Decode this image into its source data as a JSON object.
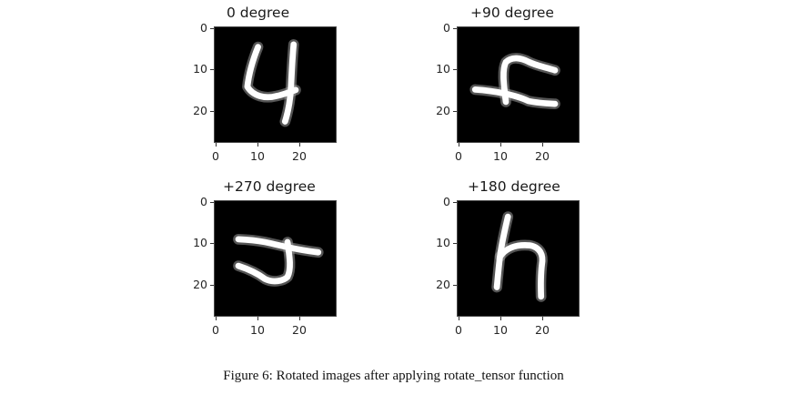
{
  "figure": {
    "caption": "Figure 6: Rotated images after applying rotate_tensor function",
    "panels": [
      {
        "title": "0 degree",
        "digit_icon": "digit-4-icon",
        "yticks": [
          "0",
          "10",
          "20"
        ],
        "xticks": [
          "0",
          "10",
          "20"
        ]
      },
      {
        "title": "+90 degree",
        "digit_icon": "digit-4-rotated-90-icon",
        "yticks": [
          "0",
          "10",
          "20"
        ],
        "xticks": [
          "0",
          "10",
          "20"
        ]
      },
      {
        "title": "+270 degree",
        "digit_icon": "digit-4-rotated-270-icon",
        "yticks": [
          "0",
          "10",
          "20"
        ],
        "xticks": [
          "0",
          "10",
          "20"
        ]
      },
      {
        "title": "+180 degree",
        "digit_icon": "digit-4-rotated-180-icon",
        "yticks": [
          "0",
          "10",
          "20"
        ],
        "xticks": [
          "0",
          "10",
          "20"
        ]
      }
    ],
    "colors": {
      "image_background": "#000000",
      "stroke": "#ffffff"
    }
  }
}
